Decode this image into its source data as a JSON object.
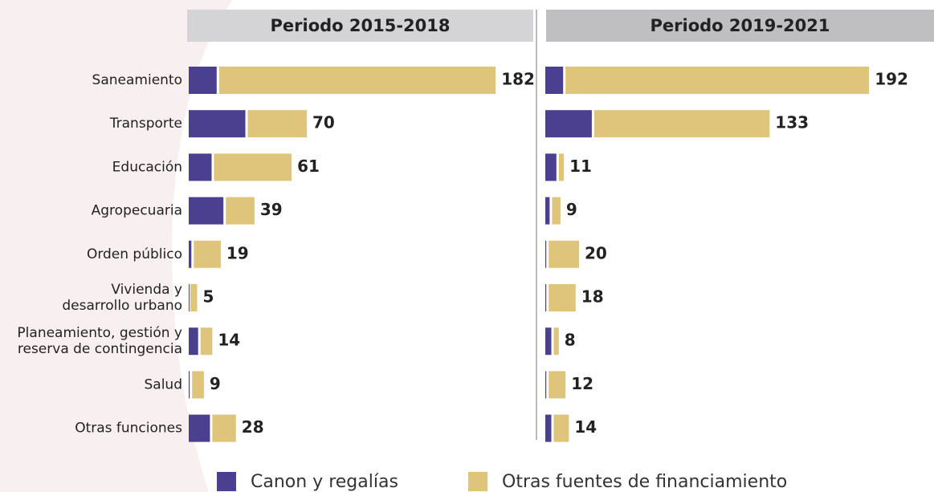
{
  "chart_data": {
    "type": "stacked-bar-horizontal",
    "categories": [
      "Saneamiento",
      "Transporte",
      "Educación",
      "Agropecuaria",
      "Orden público",
      "Vivienda y\ndesarrollo urbano",
      "Planeamiento, gestión y\nreserva de contingencia",
      "Salud",
      "Otras funciones"
    ],
    "series": [
      {
        "name": "Canon y regalías",
        "color": "#4b3f8f"
      },
      {
        "name": "Otras fuentes de financiamiento",
        "color": "#dfc57c"
      }
    ],
    "panels": [
      {
        "title": "Periodo 2015-2018",
        "values": [
          [
            18,
            35,
            15,
            22,
            3,
            1,
            7,
            2,
            14
          ],
          [
            164,
            35,
            46,
            17,
            16,
            4,
            7,
            7,
            14
          ]
        ],
        "totals": [
          182,
          70,
          61,
          39,
          19,
          5,
          14,
          9,
          28
        ]
      },
      {
        "title": "Periodo 2019-2021",
        "values": [
          [
            12,
            29,
            8,
            4,
            2,
            2,
            5,
            2,
            5
          ],
          [
            180,
            104,
            3,
            5,
            18,
            16,
            3,
            10,
            9
          ]
        ],
        "totals": [
          192,
          133,
          11,
          9,
          20,
          18,
          8,
          12,
          14
        ]
      }
    ]
  }
}
